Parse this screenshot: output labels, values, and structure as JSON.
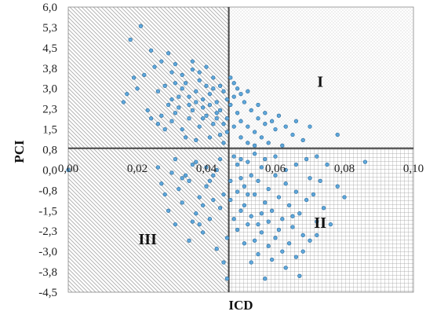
{
  "chart_data": {
    "type": "scatter",
    "xlabel": "ICD",
    "ylabel": "PCI",
    "xlim": [
      0,
      0.1
    ],
    "ylim": [
      -4.5,
      6.0
    ],
    "x_ticks": [
      "0,00",
      "0,02",
      "0,04",
      "0,06",
      "0,08",
      "0,10"
    ],
    "y_ticks": [
      "6,0",
      "5,3",
      "4,5",
      "3,8",
      "3,0",
      "2,3",
      "1,5",
      "0,8",
      "0,0",
      "-0,8",
      "-1,5",
      "-2,3",
      "-3,0",
      "-3,8",
      "-4,5"
    ],
    "quadrant_split": {
      "x": 0.0465,
      "y": 0.8
    },
    "quadrant_labels": [
      {
        "label": "I",
        "x": 0.073,
        "y": 3.2
      },
      {
        "label": "II",
        "x": 0.073,
        "y": -2.0
      },
      {
        "label": "III",
        "x": 0.023,
        "y": -2.6
      }
    ],
    "point_color": "#5fa8dc",
    "point_edge": "#2f6f9f",
    "grid": false,
    "legend": "none",
    "series": [
      {
        "points": [
          [
            0.0,
            0.0
          ],
          [
            0.018,
            4.8
          ],
          [
            0.021,
            5.3
          ],
          [
            0.024,
            4.4
          ],
          [
            0.019,
            3.4
          ],
          [
            0.022,
            3.5
          ],
          [
            0.016,
            2.5
          ],
          [
            0.017,
            2.8
          ],
          [
            0.02,
            3.0
          ],
          [
            0.023,
            2.2
          ],
          [
            0.025,
            3.8
          ],
          [
            0.027,
            4.0
          ],
          [
            0.029,
            4.3
          ],
          [
            0.03,
            3.6
          ],
          [
            0.028,
            3.1
          ],
          [
            0.026,
            2.9
          ],
          [
            0.031,
            3.9
          ],
          [
            0.033,
            3.5
          ],
          [
            0.032,
            2.7
          ],
          [
            0.034,
            3.2
          ],
          [
            0.035,
            2.4
          ],
          [
            0.036,
            3.7
          ],
          [
            0.037,
            2.9
          ],
          [
            0.038,
            3.3
          ],
          [
            0.039,
            2.6
          ],
          [
            0.04,
            3.1
          ],
          [
            0.041,
            2.8
          ],
          [
            0.042,
            3.4
          ],
          [
            0.043,
            2.5
          ],
          [
            0.044,
            2.2
          ],
          [
            0.045,
            2.9
          ],
          [
            0.046,
            1.9
          ],
          [
            0.047,
            2.4
          ],
          [
            0.048,
            2.7
          ],
          [
            0.049,
            2.1
          ],
          [
            0.05,
            1.8
          ],
          [
            0.051,
            2.5
          ],
          [
            0.052,
            1.6
          ],
          [
            0.053,
            2.2
          ],
          [
            0.054,
            1.4
          ],
          [
            0.055,
            1.9
          ],
          [
            0.056,
            1.2
          ],
          [
            0.057,
            1.7
          ],
          [
            0.058,
            1.0
          ],
          [
            0.06,
            1.5
          ],
          [
            0.062,
            0.9
          ],
          [
            0.065,
            1.3
          ],
          [
            0.068,
            1.1
          ],
          [
            0.07,
            1.6
          ],
          [
            0.078,
            1.3
          ],
          [
            0.03,
            1.8
          ],
          [
            0.033,
            1.5
          ],
          [
            0.035,
            1.9
          ],
          [
            0.038,
            1.6
          ],
          [
            0.04,
            2.0
          ],
          [
            0.042,
            1.7
          ],
          [
            0.044,
            1.3
          ],
          [
            0.045,
            1.0
          ],
          [
            0.041,
            1.2
          ],
          [
            0.037,
            1.1
          ],
          [
            0.034,
            1.2
          ],
          [
            0.031,
            2.1
          ],
          [
            0.029,
            2.4
          ],
          [
            0.027,
            2.0
          ],
          [
            0.036,
            2.2
          ],
          [
            0.039,
            2.3
          ],
          [
            0.043,
            1.9
          ],
          [
            0.046,
            1.4
          ],
          [
            0.048,
            1.6
          ],
          [
            0.05,
            1.2
          ],
          [
            0.052,
            1.0
          ],
          [
            0.054,
            0.9
          ],
          [
            0.036,
            4.0
          ],
          [
            0.038,
            3.6
          ],
          [
            0.04,
            3.8
          ],
          [
            0.042,
            3.0
          ],
          [
            0.033,
            3.0
          ],
          [
            0.031,
            3.2
          ],
          [
            0.044,
            3.1
          ],
          [
            0.046,
            2.6
          ],
          [
            0.048,
            3.2
          ],
          [
            0.05,
            2.8
          ],
          [
            0.052,
            2.9
          ],
          [
            0.049,
            3.0
          ],
          [
            0.047,
            3.4
          ],
          [
            0.055,
            2.4
          ],
          [
            0.057,
            2.1
          ],
          [
            0.059,
            1.8
          ],
          [
            0.061,
            2.0
          ],
          [
            0.063,
            1.6
          ],
          [
            0.066,
            1.8
          ],
          [
            0.03,
            2.6
          ],
          [
            0.032,
            2.3
          ],
          [
            0.035,
            2.7
          ],
          [
            0.037,
            2.5
          ],
          [
            0.039,
            1.9
          ],
          [
            0.041,
            2.4
          ],
          [
            0.043,
            2.1
          ],
          [
            0.045,
            1.7
          ],
          [
            0.028,
            1.5
          ],
          [
            0.026,
            1.7
          ],
          [
            0.024,
            1.9
          ],
          [
            0.048,
            0.5
          ],
          [
            0.049,
            0.2
          ],
          [
            0.05,
            -0.3
          ],
          [
            0.051,
            -0.6
          ],
          [
            0.052,
            0.3
          ],
          [
            0.053,
            -0.2
          ],
          [
            0.054,
            -0.9
          ],
          [
            0.055,
            -0.4
          ],
          [
            0.056,
            0.1
          ],
          [
            0.057,
            -1.2
          ],
          [
            0.058,
            -0.7
          ],
          [
            0.059,
            -1.5
          ],
          [
            0.06,
            -0.2
          ],
          [
            0.061,
            -1.0
          ],
          [
            0.062,
            -1.8
          ],
          [
            0.063,
            -0.5
          ],
          [
            0.064,
            -1.3
          ],
          [
            0.065,
            -2.1
          ],
          [
            0.066,
            -0.8
          ],
          [
            0.067,
            -1.6
          ],
          [
            0.068,
            -2.4
          ],
          [
            0.069,
            -1.1
          ],
          [
            0.07,
            -0.3
          ],
          [
            0.072,
            -1.9
          ],
          [
            0.074,
            -1.4
          ],
          [
            0.076,
            -2.0
          ],
          [
            0.078,
            -0.6
          ],
          [
            0.08,
            -1.0
          ],
          [
            0.086,
            0.3
          ],
          [
            0.05,
            -1.5
          ],
          [
            0.052,
            -2.0
          ],
          [
            0.054,
            -2.6
          ],
          [
            0.055,
            -3.1
          ],
          [
            0.056,
            -2.3
          ],
          [
            0.058,
            -2.8
          ],
          [
            0.059,
            -3.3
          ],
          [
            0.06,
            -2.5
          ],
          [
            0.062,
            -3.0
          ],
          [
            0.063,
            -3.6
          ],
          [
            0.064,
            -2.7
          ],
          [
            0.066,
            -3.2
          ],
          [
            0.067,
            -3.9
          ],
          [
            0.057,
            -4.0
          ],
          [
            0.053,
            -3.4
          ],
          [
            0.051,
            -2.7
          ],
          [
            0.049,
            -2.2
          ],
          [
            0.048,
            -1.8
          ],
          [
            0.047,
            -1.1
          ],
          [
            0.047,
            -0.4
          ],
          [
            0.049,
            -0.8
          ],
          [
            0.051,
            -1.3
          ],
          [
            0.053,
            -1.7
          ],
          [
            0.055,
            -2.0
          ],
          [
            0.061,
            -2.2
          ],
          [
            0.065,
            -1.7
          ],
          [
            0.071,
            -0.9
          ],
          [
            0.073,
            -0.4
          ],
          [
            0.075,
            0.2
          ],
          [
            0.072,
            0.5
          ],
          [
            0.069,
            0.4
          ],
          [
            0.066,
            0.2
          ],
          [
            0.063,
            0.0
          ],
          [
            0.06,
            0.5
          ],
          [
            0.057,
            0.4
          ],
          [
            0.054,
            0.6
          ],
          [
            0.05,
            0.4
          ],
          [
            0.068,
            -3.0
          ],
          [
            0.07,
            -2.6
          ],
          [
            0.072,
            -2.4
          ],
          [
            0.058,
            -1.9
          ],
          [
            0.056,
            -1.6
          ],
          [
            0.052,
            -0.9
          ],
          [
            0.044,
            0.4
          ],
          [
            0.042,
            -0.2
          ],
          [
            0.04,
            -0.6
          ],
          [
            0.038,
            -1.0
          ],
          [
            0.036,
            0.2
          ],
          [
            0.035,
            -0.4
          ],
          [
            0.033,
            -1.2
          ],
          [
            0.032,
            -0.7
          ],
          [
            0.03,
            -0.1
          ],
          [
            0.029,
            -1.5
          ],
          [
            0.027,
            -0.5
          ],
          [
            0.026,
            0.1
          ],
          [
            0.041,
            -1.8
          ],
          [
            0.039,
            -2.3
          ],
          [
            0.037,
            -1.6
          ],
          [
            0.035,
            -2.6
          ],
          [
            0.043,
            -2.9
          ],
          [
            0.045,
            -3.4
          ],
          [
            0.046,
            -2.5
          ],
          [
            0.044,
            -1.4
          ],
          [
            0.042,
            -1.1
          ],
          [
            0.04,
            0.1
          ],
          [
            0.037,
            0.3
          ],
          [
            0.034,
            -0.2
          ],
          [
            0.031,
            0.4
          ],
          [
            0.028,
            -0.9
          ],
          [
            0.046,
            -4.0
          ],
          [
            0.041,
            -0.4
          ],
          [
            0.039,
            -1.3
          ],
          [
            0.036,
            -1.9
          ],
          [
            0.033,
            -0.3
          ],
          [
            0.045,
            -0.9
          ],
          [
            0.043,
            0.0
          ],
          [
            0.031,
            -2.0
          ],
          [
            0.038,
            -2.0
          ]
        ]
      }
    ]
  }
}
